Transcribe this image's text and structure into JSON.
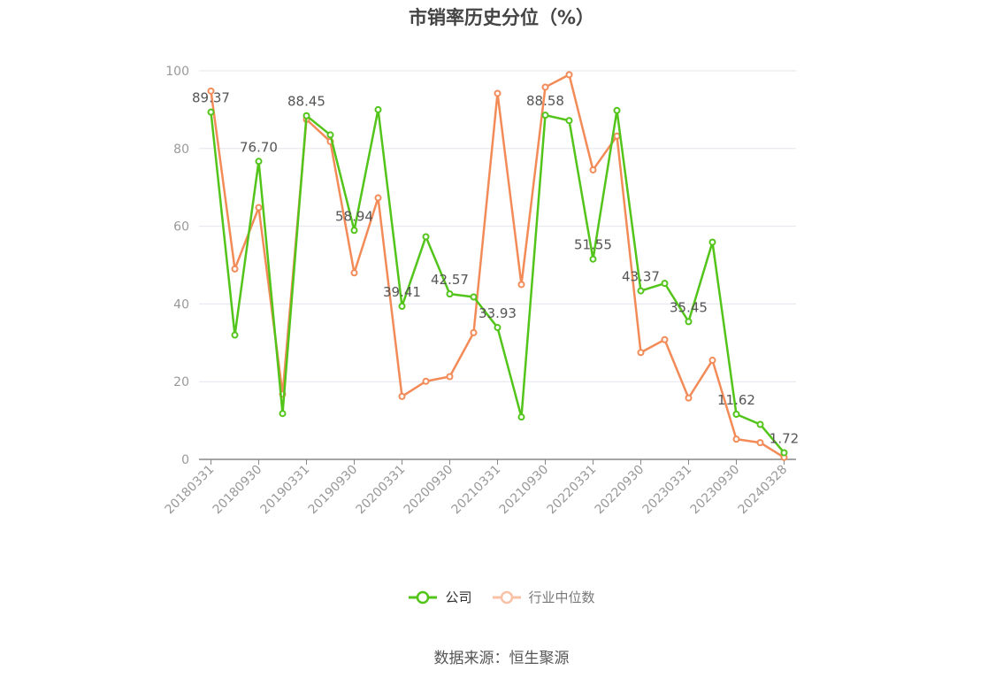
{
  "chart_data": {
    "type": "line",
    "title": "市销率历史分位（%）",
    "xlabel": "",
    "ylabel": "",
    "ylim": [
      0,
      100
    ],
    "yticks": [
      0,
      20,
      40,
      60,
      80,
      100
    ],
    "grid": true,
    "legend_position": "bottom",
    "x": [
      "20180331",
      "20180630",
      "20180930",
      "20181231",
      "20190331",
      "20190630",
      "20190930",
      "20191231",
      "20200331",
      "20200630",
      "20200930",
      "20201231",
      "20210331",
      "20210630",
      "20210930",
      "20211231",
      "20220331",
      "20220630",
      "20220930",
      "20221231",
      "20230331",
      "20230630",
      "20230930",
      "20231231",
      "20240328"
    ],
    "x_tick_labels": [
      "20180331",
      "20180930",
      "20190331",
      "20190930",
      "20200331",
      "20200930",
      "20210331",
      "20210930",
      "20220331",
      "20220930",
      "20230331",
      "20230930",
      "20240328"
    ],
    "series": [
      {
        "name": "公司",
        "color": "#52c41a",
        "values": [
          89.37,
          32.0,
          76.7,
          11.8,
          88.45,
          83.5,
          58.94,
          90.0,
          39.41,
          57.3,
          42.57,
          41.8,
          33.93,
          10.9,
          88.58,
          87.2,
          51.55,
          89.8,
          43.37,
          45.3,
          35.45,
          55.9,
          11.62,
          9.0,
          1.72
        ],
        "labels": [
          "89.37",
          null,
          "76.70",
          null,
          "88.45",
          null,
          "58.94",
          null,
          "39.41",
          null,
          "42.57",
          null,
          "33.93",
          null,
          "88.58",
          null,
          "51.55",
          null,
          "43.37",
          null,
          "35.45",
          null,
          "11.62",
          null,
          "1.72"
        ]
      },
      {
        "name": "行业中位数",
        "color": "#f28b58",
        "values": [
          94.8,
          49.0,
          64.8,
          16.8,
          87.5,
          81.8,
          48.0,
          67.3,
          16.2,
          20.1,
          21.3,
          32.6,
          94.2,
          45.0,
          95.8,
          99.0,
          74.5,
          83.2,
          27.5,
          30.8,
          15.8,
          25.5,
          5.2,
          4.3,
          0.5
        ]
      }
    ]
  },
  "source": "数据来源：恒生聚源"
}
